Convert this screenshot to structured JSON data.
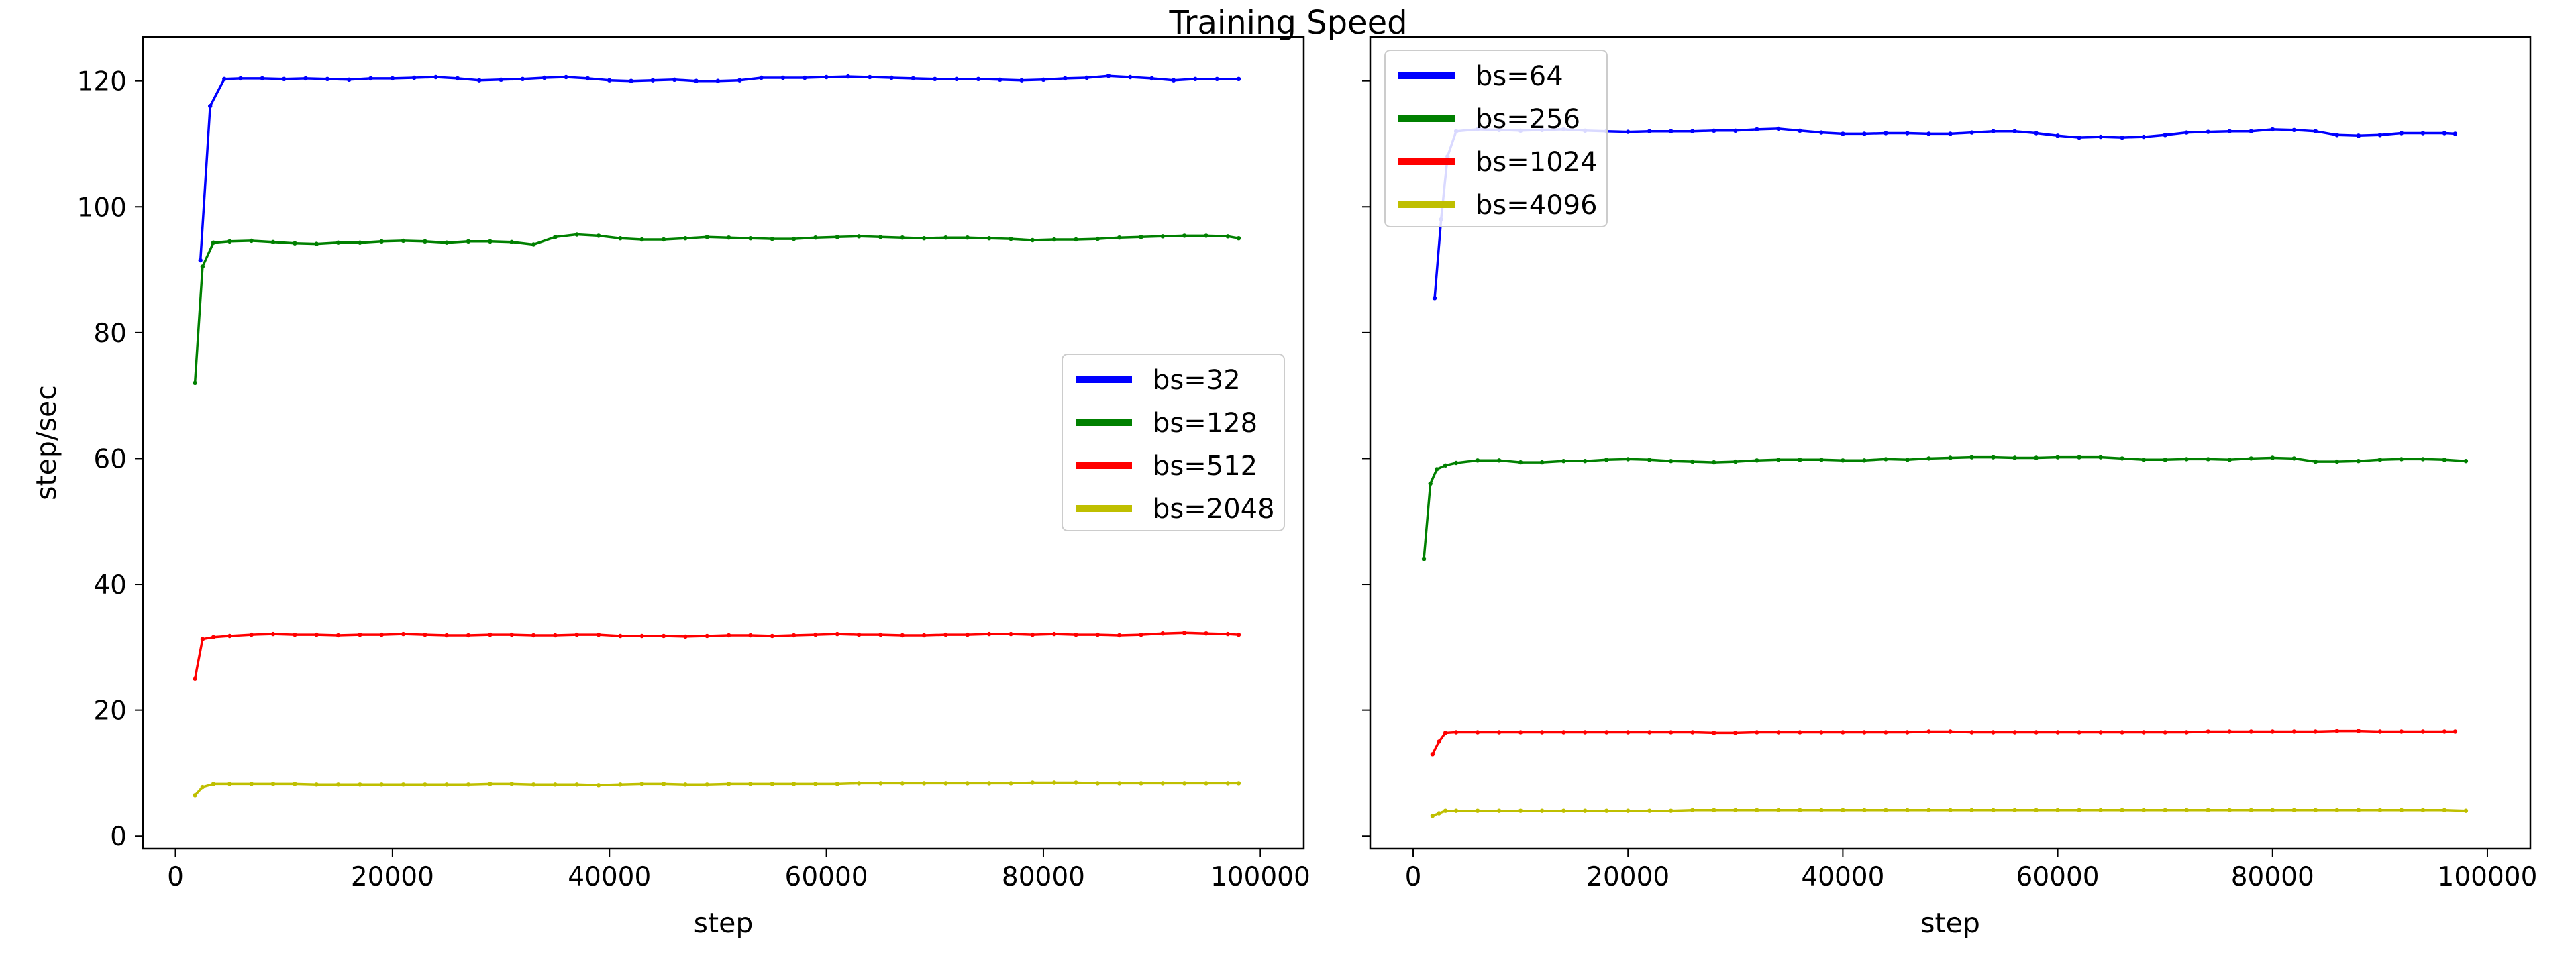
{
  "figure": {
    "title": "Training Speed"
  },
  "chart_data": [
    {
      "type": "line",
      "title": "",
      "xlabel": "step",
      "ylabel": "step/sec",
      "xlim": [
        -3000,
        104000
      ],
      "ylim": [
        -2,
        127
      ],
      "xticks": [
        0,
        20000,
        40000,
        60000,
        80000,
        100000
      ],
      "yticks": [
        0,
        20,
        40,
        60,
        80,
        100,
        120
      ],
      "legend_position": "center-right",
      "series": [
        {
          "name": "bs=32",
          "color": "#0000ff",
          "x": [
            2300,
            3200,
            4500,
            6000,
            8000,
            10000,
            12000,
            14000,
            16000,
            18000,
            20000,
            22000,
            24000,
            26000,
            28000,
            30000,
            32000,
            34000,
            36000,
            38000,
            40000,
            42000,
            44000,
            46000,
            48000,
            50000,
            52000,
            54000,
            56000,
            58000,
            60000,
            62000,
            64000,
            66000,
            68000,
            70000,
            72000,
            74000,
            76000,
            78000,
            80000,
            82000,
            84000,
            86000,
            88000,
            90000,
            92000,
            94000,
            96000,
            98000
          ],
          "y": [
            91.5,
            116,
            120.3,
            120.4,
            120.4,
            120.3,
            120.4,
            120.3,
            120.2,
            120.4,
            120.4,
            120.5,
            120.6,
            120.4,
            120.1,
            120.2,
            120.3,
            120.5,
            120.6,
            120.4,
            120.1,
            120,
            120.1,
            120.2,
            120,
            120,
            120.1,
            120.5,
            120.5,
            120.5,
            120.6,
            120.7,
            120.6,
            120.5,
            120.4,
            120.3,
            120.3,
            120.3,
            120.2,
            120.1,
            120.2,
            120.4,
            120.5,
            120.8,
            120.6,
            120.4,
            120.1,
            120.3,
            120.3,
            120.3
          ]
        },
        {
          "name": "bs=128",
          "color": "#008000",
          "x": [
            1800,
            2500,
            3500,
            5000,
            7000,
            9000,
            11000,
            13000,
            15000,
            17000,
            19000,
            21000,
            23000,
            25000,
            27000,
            29000,
            31000,
            33000,
            35000,
            37000,
            39000,
            41000,
            43000,
            45000,
            47000,
            49000,
            51000,
            53000,
            55000,
            57000,
            59000,
            61000,
            63000,
            65000,
            67000,
            69000,
            71000,
            73000,
            75000,
            77000,
            79000,
            81000,
            83000,
            85000,
            87000,
            89000,
            91000,
            93000,
            95000,
            97000,
            98000
          ],
          "y": [
            72,
            90.5,
            94.3,
            94.5,
            94.6,
            94.4,
            94.2,
            94.1,
            94.3,
            94.3,
            94.5,
            94.6,
            94.5,
            94.3,
            94.5,
            94.5,
            94.4,
            94,
            95.2,
            95.6,
            95.4,
            95,
            94.8,
            94.8,
            95,
            95.2,
            95.1,
            95,
            94.9,
            94.9,
            95.1,
            95.2,
            95.3,
            95.2,
            95.1,
            95,
            95.1,
            95.1,
            95,
            94.9,
            94.7,
            94.8,
            94.8,
            94.9,
            95.1,
            95.2,
            95.3,
            95.4,
            95.4,
            95.3,
            95
          ]
        },
        {
          "name": "bs=512",
          "color": "#ff0000",
          "x": [
            1800,
            2500,
            3500,
            5000,
            7000,
            9000,
            11000,
            13000,
            15000,
            17000,
            19000,
            21000,
            23000,
            25000,
            27000,
            29000,
            31000,
            33000,
            35000,
            37000,
            39000,
            41000,
            43000,
            45000,
            47000,
            49000,
            51000,
            53000,
            55000,
            57000,
            59000,
            61000,
            63000,
            65000,
            67000,
            69000,
            71000,
            73000,
            75000,
            77000,
            79000,
            81000,
            83000,
            85000,
            87000,
            89000,
            91000,
            93000,
            95000,
            97000,
            98000
          ],
          "y": [
            25,
            31.3,
            31.6,
            31.8,
            32,
            32.1,
            32,
            32,
            31.9,
            32,
            32,
            32.1,
            32,
            31.9,
            31.9,
            32,
            32,
            31.9,
            31.9,
            32,
            32,
            31.8,
            31.8,
            31.8,
            31.7,
            31.8,
            31.9,
            31.9,
            31.8,
            31.9,
            32,
            32.1,
            32,
            32,
            31.9,
            31.9,
            32,
            32,
            32.1,
            32.1,
            32,
            32.1,
            32,
            32,
            31.9,
            32,
            32.2,
            32.3,
            32.2,
            32.1,
            32
          ]
        },
        {
          "name": "bs=2048",
          "color": "#bfbf00",
          "x": [
            1800,
            2500,
            3500,
            5000,
            7000,
            9000,
            11000,
            13000,
            15000,
            17000,
            19000,
            21000,
            23000,
            25000,
            27000,
            29000,
            31000,
            33000,
            35000,
            37000,
            39000,
            41000,
            43000,
            45000,
            47000,
            49000,
            51000,
            53000,
            55000,
            57000,
            59000,
            61000,
            63000,
            65000,
            67000,
            69000,
            71000,
            73000,
            75000,
            77000,
            79000,
            81000,
            83000,
            85000,
            87000,
            89000,
            91000,
            93000,
            95000,
            97000,
            98000
          ],
          "y": [
            6.5,
            7.8,
            8.3,
            8.3,
            8.3,
            8.3,
            8.3,
            8.2,
            8.2,
            8.2,
            8.2,
            8.2,
            8.2,
            8.2,
            8.2,
            8.3,
            8.3,
            8.2,
            8.2,
            8.2,
            8.1,
            8.2,
            8.3,
            8.3,
            8.2,
            8.2,
            8.3,
            8.3,
            8.3,
            8.3,
            8.3,
            8.3,
            8.4,
            8.4,
            8.4,
            8.4,
            8.4,
            8.4,
            8.4,
            8.4,
            8.5,
            8.5,
            8.5,
            8.4,
            8.4,
            8.4,
            8.4,
            8.4,
            8.4,
            8.4,
            8.4
          ]
        }
      ]
    },
    {
      "type": "line",
      "title": "",
      "xlabel": "step",
      "ylabel": "",
      "xlim": [
        -4000,
        104000
      ],
      "ylim": [
        -2,
        127
      ],
      "xticks": [
        0,
        20000,
        40000,
        60000,
        80000,
        100000
      ],
      "yticks": [
        0,
        20,
        40,
        60,
        80,
        100,
        120
      ],
      "show_y_tick_labels": false,
      "legend_position": "top-left",
      "series": [
        {
          "name": "bs=64",
          "color": "#0000ff",
          "x": [
            2000,
            2600,
            3200,
            4000,
            6000,
            8000,
            10000,
            12000,
            14000,
            16000,
            18000,
            20000,
            22000,
            24000,
            26000,
            28000,
            30000,
            32000,
            34000,
            36000,
            38000,
            40000,
            42000,
            44000,
            46000,
            48000,
            50000,
            52000,
            54000,
            56000,
            58000,
            60000,
            62000,
            64000,
            66000,
            68000,
            70000,
            72000,
            74000,
            76000,
            78000,
            80000,
            82000,
            84000,
            86000,
            88000,
            90000,
            92000,
            94000,
            96000,
            97000
          ],
          "y": [
            85.5,
            98,
            108,
            112,
            112.3,
            112.2,
            112.1,
            112.2,
            112.3,
            112.1,
            112,
            111.9,
            112,
            112,
            112,
            112.1,
            112.1,
            112.3,
            112.4,
            112.1,
            111.8,
            111.6,
            111.6,
            111.7,
            111.7,
            111.6,
            111.6,
            111.8,
            112,
            112,
            111.7,
            111.3,
            111,
            111.1,
            111,
            111.1,
            111.4,
            111.8,
            111.9,
            112,
            112,
            112.3,
            112.2,
            112,
            111.4,
            111.3,
            111.4,
            111.7,
            111.7,
            111.7,
            111.6
          ]
        },
        {
          "name": "bs=256",
          "color": "#008000",
          "x": [
            1000,
            1600,
            2200,
            3000,
            4000,
            6000,
            8000,
            10000,
            12000,
            14000,
            16000,
            18000,
            20000,
            22000,
            24000,
            26000,
            28000,
            30000,
            32000,
            34000,
            36000,
            38000,
            40000,
            42000,
            44000,
            46000,
            48000,
            50000,
            52000,
            54000,
            56000,
            58000,
            60000,
            62000,
            64000,
            66000,
            68000,
            70000,
            72000,
            74000,
            76000,
            78000,
            80000,
            82000,
            84000,
            86000,
            88000,
            90000,
            92000,
            94000,
            96000,
            98000
          ],
          "y": [
            44,
            56,
            58.3,
            58.9,
            59.3,
            59.7,
            59.7,
            59.4,
            59.4,
            59.6,
            59.6,
            59.8,
            59.9,
            59.8,
            59.6,
            59.5,
            59.4,
            59.5,
            59.7,
            59.8,
            59.8,
            59.8,
            59.7,
            59.7,
            59.9,
            59.8,
            60,
            60.1,
            60.2,
            60.2,
            60.1,
            60.1,
            60.2,
            60.2,
            60.2,
            60,
            59.8,
            59.8,
            59.9,
            59.9,
            59.8,
            60,
            60.1,
            60,
            59.5,
            59.5,
            59.6,
            59.8,
            59.9,
            59.9,
            59.8,
            59.6
          ]
        },
        {
          "name": "bs=1024",
          "color": "#ff0000",
          "x": [
            1800,
            2400,
            3000,
            4000,
            6000,
            8000,
            10000,
            12000,
            14000,
            16000,
            18000,
            20000,
            22000,
            24000,
            26000,
            28000,
            30000,
            32000,
            34000,
            36000,
            38000,
            40000,
            42000,
            44000,
            46000,
            48000,
            50000,
            52000,
            54000,
            56000,
            58000,
            60000,
            62000,
            64000,
            66000,
            68000,
            70000,
            72000,
            74000,
            76000,
            78000,
            80000,
            82000,
            84000,
            86000,
            88000,
            90000,
            92000,
            94000,
            96000,
            97000
          ],
          "y": [
            13,
            15,
            16.4,
            16.5,
            16.5,
            16.5,
            16.5,
            16.5,
            16.5,
            16.5,
            16.5,
            16.5,
            16.5,
            16.5,
            16.5,
            16.4,
            16.4,
            16.5,
            16.5,
            16.5,
            16.5,
            16.5,
            16.5,
            16.5,
            16.5,
            16.6,
            16.6,
            16.5,
            16.5,
            16.5,
            16.5,
            16.5,
            16.5,
            16.5,
            16.5,
            16.5,
            16.5,
            16.5,
            16.6,
            16.6,
            16.6,
            16.6,
            16.6,
            16.6,
            16.7,
            16.7,
            16.6,
            16.6,
            16.6,
            16.6,
            16.6
          ]
        },
        {
          "name": "bs=4096",
          "color": "#bfbf00",
          "x": [
            1800,
            2400,
            3000,
            4000,
            6000,
            8000,
            10000,
            12000,
            14000,
            16000,
            18000,
            20000,
            22000,
            24000,
            26000,
            28000,
            30000,
            32000,
            34000,
            36000,
            38000,
            40000,
            42000,
            44000,
            46000,
            48000,
            50000,
            52000,
            54000,
            56000,
            58000,
            60000,
            62000,
            64000,
            66000,
            68000,
            70000,
            72000,
            74000,
            76000,
            78000,
            80000,
            82000,
            84000,
            86000,
            88000,
            90000,
            92000,
            94000,
            96000,
            98000
          ],
          "y": [
            3.2,
            3.6,
            4,
            4,
            4,
            4,
            4,
            4,
            4,
            4,
            4,
            4,
            4,
            4,
            4.1,
            4.1,
            4.1,
            4.1,
            4.1,
            4.1,
            4.1,
            4.1,
            4.1,
            4.1,
            4.1,
            4.1,
            4.1,
            4.1,
            4.1,
            4.1,
            4.1,
            4.1,
            4.1,
            4.1,
            4.1,
            4.1,
            4.1,
            4.1,
            4.1,
            4.1,
            4.1,
            4.1,
            4.1,
            4.1,
            4.1,
            4.1,
            4.1,
            4.1,
            4.1,
            4.1,
            4
          ]
        }
      ]
    }
  ]
}
